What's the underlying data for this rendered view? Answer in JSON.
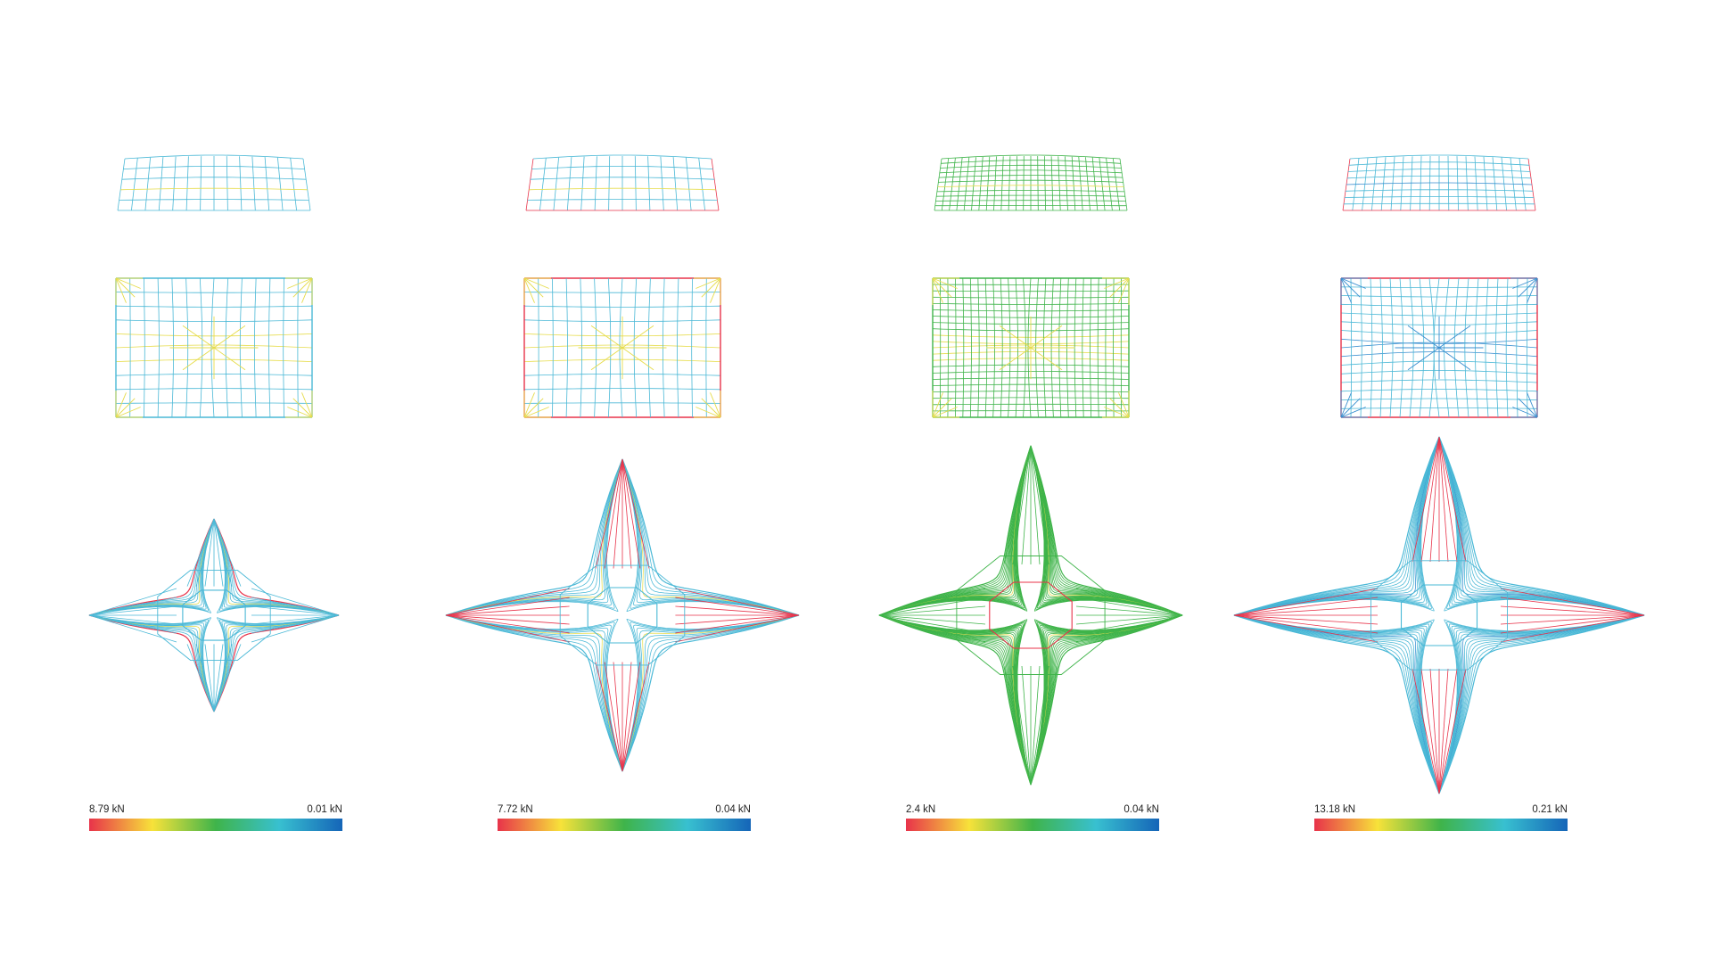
{
  "columns": [
    {
      "id": "col-1",
      "max_label": "8.79 kN",
      "min_label": "0.01 kN"
    },
    {
      "id": "col-2",
      "max_label": "7.72 kN",
      "min_label": "0.04 kN"
    },
    {
      "id": "col-3",
      "max_label": "2.4 kN",
      "min_label": "0.04 kN"
    },
    {
      "id": "col-4",
      "max_label": "13.18 kN",
      "min_label": "0.21 kN"
    }
  ],
  "colors": {
    "gradient": [
      "#e8334a",
      "#f7e23a",
      "#3fb44a",
      "#38c0d0",
      "#1565b8"
    ],
    "mesh_low": "#4ab8d6",
    "mesh_mid": "#e6dc4a",
    "mesh_high": "#e8334a",
    "mesh_green": "#3fb44a",
    "mesh_blue": "#3a8fd0"
  }
}
